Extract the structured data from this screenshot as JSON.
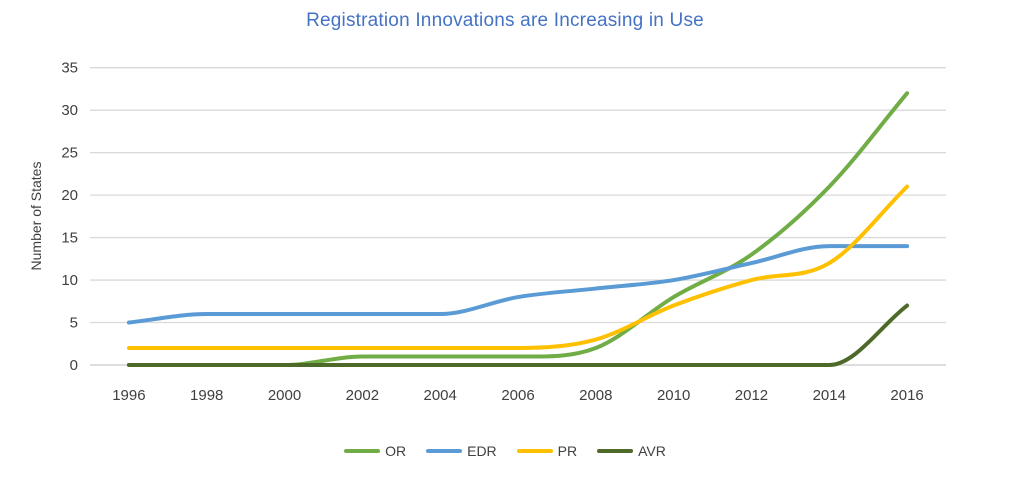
{
  "chart_data": {
    "type": "line",
    "title": "Registration Innovations are Increasing in Use",
    "title_color": "#4472c4",
    "ylabel": "Number of States",
    "xlabel": "",
    "categories": [
      "1996",
      "1998",
      "2000",
      "2002",
      "2004",
      "2006",
      "2008",
      "2010",
      "2012",
      "2014",
      "2016"
    ],
    "series": [
      {
        "name": "OR",
        "color": "#70ad47",
        "values": [
          0,
          0,
          0,
          1,
          1,
          1,
          2,
          8,
          13,
          21,
          32
        ]
      },
      {
        "name": "EDR",
        "color": "#5b9bd5",
        "values": [
          5,
          6,
          6,
          6,
          6,
          8,
          9,
          10,
          12,
          14,
          14
        ]
      },
      {
        "name": "PR",
        "color": "#ffc000",
        "values": [
          2,
          2,
          2,
          2,
          2,
          2,
          3,
          7,
          10,
          12,
          21
        ]
      },
      {
        "name": "AVR",
        "color": "#4e6a28",
        "values": [
          0,
          0,
          0,
          0,
          0,
          0,
          0,
          0,
          0,
          0,
          7
        ]
      }
    ],
    "ylim": [
      0,
      35
    ],
    "yticks": [
      0,
      5,
      10,
      15,
      20,
      25,
      30,
      35
    ],
    "grid": true,
    "smooth": true,
    "legend_position": "bottom",
    "axis_text_color": "#404040",
    "gridline_color": "#d9d9d9",
    "baseline_color": "#c9c9c9"
  }
}
